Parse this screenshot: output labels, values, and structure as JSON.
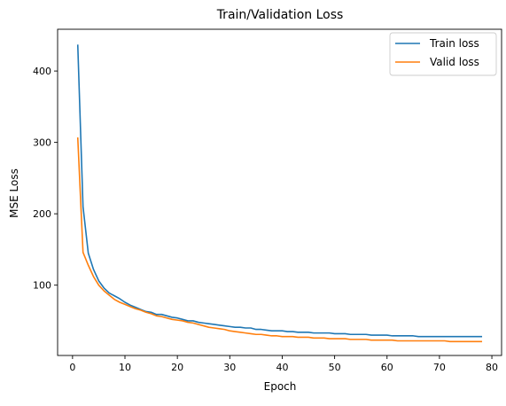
{
  "chart_data": {
    "type": "line",
    "title": "Train/Validation Loss",
    "xlabel": "Epoch",
    "ylabel": "MSE Loss",
    "xlim": [
      -2.85,
      81.85
    ],
    "ylim": [
      1.5,
      458.5
    ],
    "xticks": [
      0,
      10,
      20,
      30,
      40,
      50,
      60,
      70,
      80
    ],
    "yticks": [
      100,
      200,
      300,
      400
    ],
    "grid": false,
    "legend_position": "top-right",
    "series": [
      {
        "name": "Train loss",
        "color": "#1f77b4",
        "x": [
          1,
          2,
          3,
          4,
          5,
          6,
          7,
          8,
          9,
          10,
          11,
          12,
          13,
          14,
          15,
          16,
          17,
          18,
          19,
          20,
          21,
          22,
          23,
          24,
          25,
          26,
          27,
          28,
          29,
          30,
          31,
          32,
          33,
          34,
          35,
          36,
          37,
          38,
          39,
          40,
          41,
          42,
          43,
          44,
          45,
          46,
          47,
          48,
          49,
          50,
          51,
          52,
          53,
          54,
          55,
          56,
          57,
          58,
          59,
          60,
          61,
          62,
          63,
          64,
          65,
          66,
          67,
          68,
          69,
          70,
          71,
          72,
          73,
          74,
          75,
          76,
          77,
          78
        ],
        "values": [
          436,
          210,
          145,
          122,
          106,
          96,
          89,
          85,
          81,
          76,
          72,
          69,
          66,
          63,
          62,
          59,
          59,
          57,
          55,
          54,
          52,
          50,
          50,
          48,
          47,
          46,
          45,
          44,
          43,
          42,
          41,
          41,
          40,
          40,
          38,
          38,
          37,
          36,
          36,
          36,
          35,
          35,
          34,
          34,
          34,
          33,
          33,
          33,
          33,
          32,
          32,
          32,
          31,
          31,
          31,
          31,
          30,
          30,
          30,
          30,
          29,
          29,
          29,
          29,
          29,
          28,
          28,
          28,
          28,
          28,
          28,
          28,
          28,
          28,
          28,
          28,
          28,
          28
        ]
      },
      {
        "name": "Valid loss",
        "color": "#ff7f0e",
        "x": [
          1,
          2,
          3,
          4,
          5,
          6,
          7,
          8,
          9,
          10,
          11,
          12,
          13,
          14,
          15,
          16,
          17,
          18,
          19,
          20,
          21,
          22,
          23,
          24,
          25,
          26,
          27,
          28,
          29,
          30,
          31,
          32,
          33,
          34,
          35,
          36,
          37,
          38,
          39,
          40,
          41,
          42,
          43,
          44,
          45,
          46,
          47,
          48,
          49,
          50,
          51,
          52,
          53,
          54,
          55,
          56,
          57,
          58,
          59,
          60,
          61,
          62,
          63,
          64,
          65,
          66,
          67,
          68,
          69,
          70,
          71,
          72,
          73,
          74,
          75,
          76,
          77,
          78
        ],
        "values": [
          306,
          146,
          128,
          112,
          100,
          92,
          86,
          80,
          76,
          73,
          70,
          67,
          65,
          62,
          60,
          57,
          56,
          54,
          52,
          51,
          50,
          48,
          47,
          45,
          43,
          41,
          40,
          39,
          38,
          36,
          35,
          34,
          33,
          32,
          31,
          31,
          30,
          29,
          29,
          28,
          28,
          28,
          27,
          27,
          27,
          26,
          26,
          26,
          25,
          25,
          25,
          25,
          24,
          24,
          24,
          24,
          23,
          23,
          23,
          23,
          23,
          22,
          22,
          22,
          22,
          22,
          22,
          22,
          22,
          22,
          22,
          21,
          21,
          21,
          21,
          21,
          21,
          21
        ]
      }
    ]
  }
}
